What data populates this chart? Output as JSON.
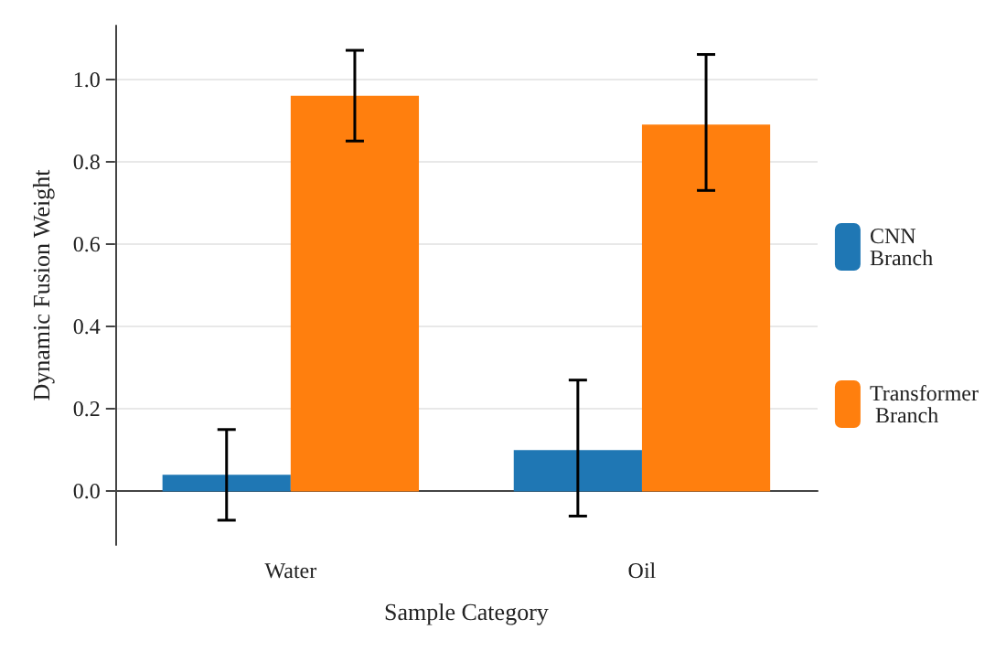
{
  "chart_data": {
    "type": "bar",
    "xlabel": "Sample Category",
    "ylabel": "Dynamic Fusion Weight",
    "categories": [
      "Water",
      "Oil"
    ],
    "series": [
      {
        "name": "CNN Branch",
        "color": "#1f77b4",
        "values": [
          0.04,
          0.1
        ],
        "errors": [
          [
            -0.07,
            0.15
          ],
          [
            -0.06,
            0.27
          ]
        ]
      },
      {
        "name": "Transformer Branch",
        "color": "#ff7f0e",
        "values": [
          0.96,
          0.89
        ],
        "errors": [
          [
            0.85,
            1.07
          ],
          [
            0.73,
            1.06
          ]
        ]
      }
    ],
    "ylim": [
      -0.13,
      1.13
    ],
    "yticks": [
      {
        "value": 0,
        "label": "0.0"
      },
      {
        "value": 0.2,
        "label": "0.2"
      },
      {
        "value": 0.4,
        "label": "0.4"
      },
      {
        "value": 0.6,
        "label": "0.6"
      },
      {
        "value": 0.8,
        "label": "0.8"
      },
      {
        "value": 1,
        "label": "1.0"
      }
    ],
    "grid": "y",
    "legend": "right"
  }
}
